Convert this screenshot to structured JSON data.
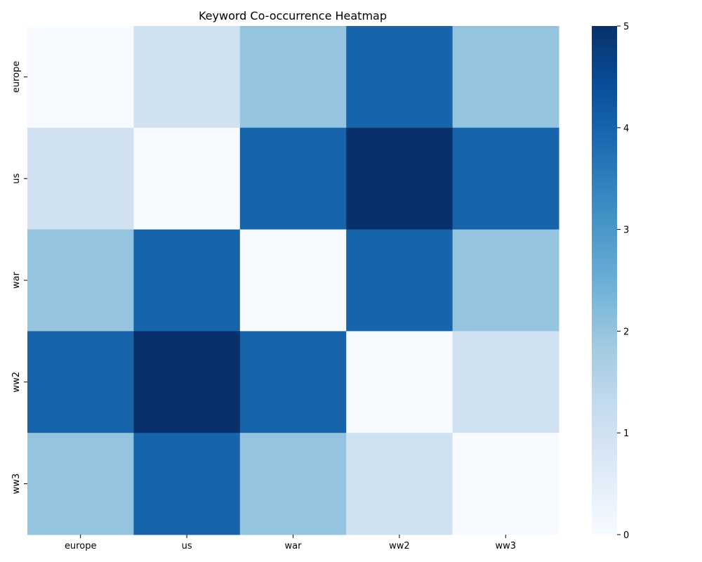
{
  "chart_data": {
    "type": "heatmap",
    "title": "Keyword Co-occurrence Heatmap",
    "xlabel": "",
    "ylabel": "",
    "x_categories": [
      "europe",
      "us",
      "war",
      "ww2",
      "ww3"
    ],
    "y_categories": [
      "europe",
      "us",
      "war",
      "ww2",
      "ww3"
    ],
    "values": [
      [
        0,
        1,
        2,
        4,
        2
      ],
      [
        1,
        0,
        4,
        5,
        4
      ],
      [
        2,
        4,
        0,
        4,
        2
      ],
      [
        4,
        5,
        4,
        0,
        1
      ],
      [
        2,
        4,
        2,
        1,
        0
      ]
    ],
    "colormap": "Blues",
    "colors": [
      "#f7fbff",
      "#deebf7",
      "#c6dbef",
      "#9ecae1",
      "#6baed6",
      "#4292c6",
      "#2171b5",
      "#08519c",
      "#08306b"
    ],
    "colorbar": {
      "min": 0,
      "max": 5,
      "ticks": [
        "0",
        "1",
        "2",
        "3",
        "4",
        "5"
      ]
    },
    "grid": false,
    "legend": "colorbar-right"
  }
}
